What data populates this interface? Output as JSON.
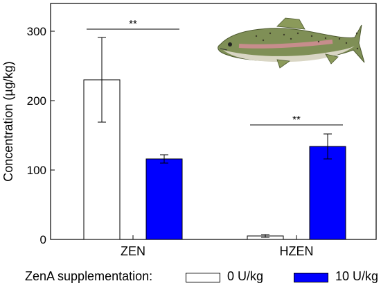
{
  "chart_data": {
    "type": "bar",
    "categories": [
      "ZEN",
      "HZEN"
    ],
    "series": [
      {
        "name": "0 U/kg",
        "values": [
          230,
          5
        ],
        "errors": [
          61,
          2
        ],
        "color": "#ffffff"
      },
      {
        "name": "10 U/kg",
        "values": [
          116,
          134
        ],
        "errors": [
          6,
          18
        ],
        "color": "#0000ff"
      }
    ],
    "ylabel": "Concentration (µg/kg)",
    "xlabel": "",
    "ylim": [
      0,
      340
    ],
    "yticks": [
      0,
      100,
      200,
      300
    ],
    "significance": [
      "**",
      "**"
    ],
    "legend_title": "ZenA supplementation:",
    "legend_placement": "bottom",
    "image": "trout-illustration"
  }
}
